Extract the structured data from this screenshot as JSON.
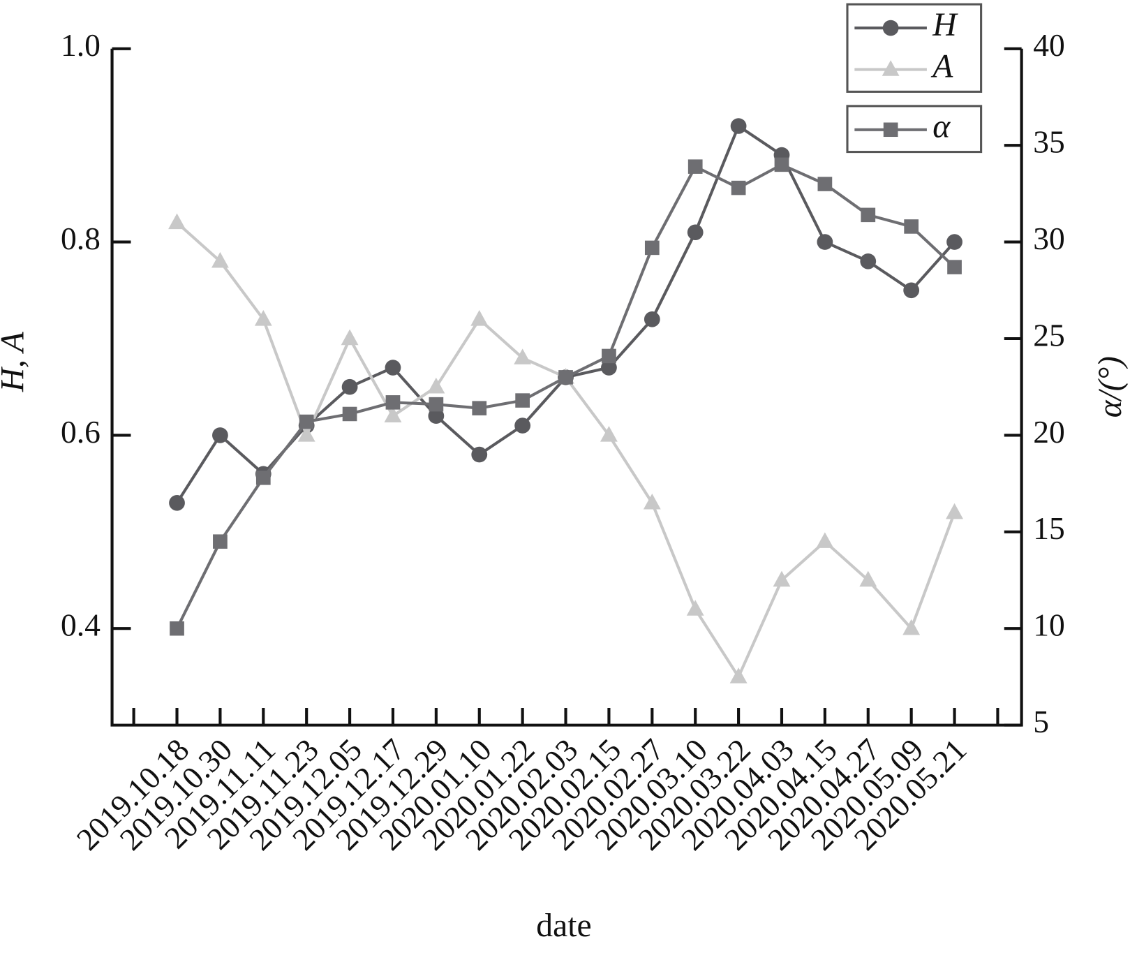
{
  "chart_data": {
    "type": "line",
    "categories": [
      null,
      "2019.10.18",
      "2019.10.30",
      "2019.11.11",
      "2019.11.23",
      "2019.12.05",
      "2019.12.17",
      "2019.12.29",
      "2020.01.10",
      "2020.01.22",
      "2020.02.03",
      "2020.02.15",
      "2020.02.27",
      "2020.03.10",
      "2020.03.22",
      "2020.04.03",
      "2020.04.15",
      "2020.04.27",
      "2020.05.09",
      "2020.05.21",
      null
    ],
    "series": [
      {
        "name": "H",
        "color": "#5a5a5e",
        "marker": "circle",
        "axis": "y",
        "values": [
          null,
          0.53,
          0.6,
          0.56,
          0.61,
          0.65,
          0.67,
          0.62,
          0.58,
          0.61,
          0.66,
          0.67,
          0.72,
          0.81,
          0.92,
          0.89,
          0.8,
          0.78,
          0.75,
          0.8,
          null
        ]
      },
      {
        "name": "A",
        "color": "#c8c8c8",
        "marker": "triangle",
        "axis": "y",
        "values": [
          null,
          0.82,
          0.78,
          0.72,
          0.6,
          0.7,
          0.62,
          0.65,
          0.72,
          0.68,
          0.66,
          0.6,
          0.53,
          0.42,
          0.35,
          0.45,
          0.49,
          0.45,
          0.4,
          0.52,
          null
        ]
      },
      {
        "name": "α",
        "color": "#6e6e72",
        "marker": "square",
        "axis": "y2",
        "values": [
          null,
          10,
          14.5,
          17.8,
          20.7,
          21.1,
          21.7,
          21.6,
          21.4,
          21.8,
          23,
          24.1,
          29.7,
          33.9,
          32.8,
          34,
          33,
          31.4,
          30.8,
          28.7,
          null
        ]
      }
    ],
    "xlabel": "date",
    "ylabel": "H, A",
    "y2label": "α/(°)",
    "ylim": [
      0.3,
      1.0
    ],
    "yticks": [
      0.4,
      0.6,
      0.8,
      {
        "value": 1,
        "label": "1.0"
      }
    ],
    "y2lim": [
      5,
      40
    ],
    "y2ticks": [
      5,
      10,
      15,
      20,
      25,
      30,
      35,
      40
    ],
    "legend": "upper right"
  }
}
